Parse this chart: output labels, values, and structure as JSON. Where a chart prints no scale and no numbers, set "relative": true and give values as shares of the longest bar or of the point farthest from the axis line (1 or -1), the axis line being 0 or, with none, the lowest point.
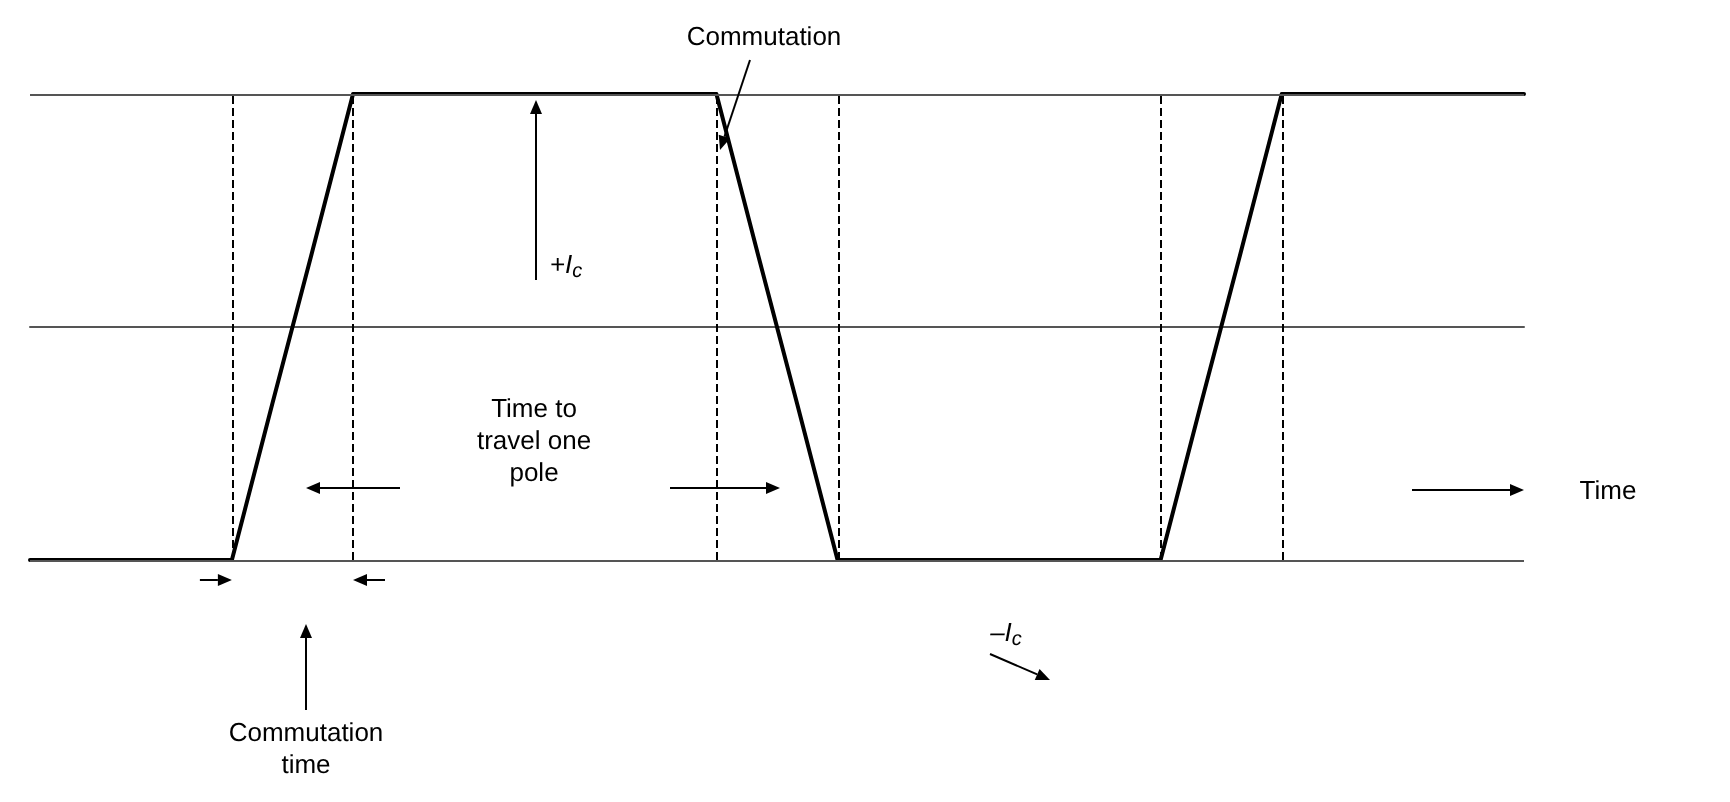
{
  "chart_data": {
    "type": "line",
    "relative": true,
    "grid": "x",
    "marker": "none",
    "line_style": "solid",
    "categories": [
      null,
      null,
      null,
      null,
      null,
      null,
      null,
      null,
      null,
      null,
      null,
      null,
      null,
      null,
      null,
      null,
      null,
      null,
      null,
      null,
      null,
      null,
      null,
      null,
      null,
      null,
      null,
      null,
      null,
      null,
      null,
      null,
      null,
      null,
      null,
      null,
      null,
      null
    ],
    "series": [
      {
        "color": "#000000",
        "values": [
          -1,
          -1,
          -1,
          -1,
          -1,
          -1,
          -0.33,
          0.33,
          1,
          1,
          1,
          1,
          1,
          1,
          1,
          1,
          1,
          1,
          0.33,
          -0.33,
          -1,
          -1,
          -1,
          -1,
          -1,
          -1,
          -1,
          -1,
          -1,
          -0.33,
          0.33,
          1,
          1,
          1,
          1,
          1,
          1,
          1
        ]
      }
    ],
    "ref_lines": [
      {
        "axis": "y",
        "value": 1,
        "color": "#555555",
        "line_style": "solid"
      },
      {
        "axis": "y",
        "value": -1,
        "color": "#555555",
        "line_style": "solid"
      }
    ],
    "annotations": [
      "Commutation",
      "+I$_{c}$",
      "Time to\ntravel one\npole",
      "–I$_{c}$",
      "Time",
      "Commutation\ntime"
    ]
  }
}
